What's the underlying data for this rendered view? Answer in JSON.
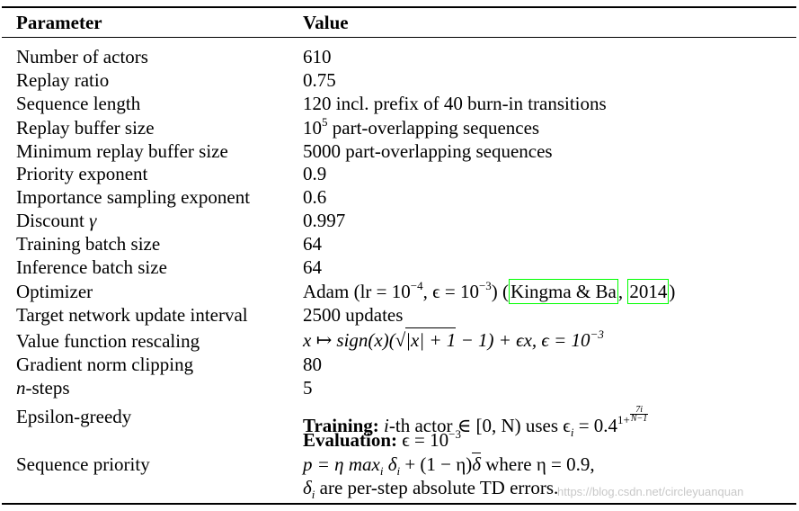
{
  "header": {
    "parameter": "Parameter",
    "value": "Value"
  },
  "rows": [
    {
      "param": "Number of actors",
      "value": "610"
    },
    {
      "param": "Replay ratio",
      "value": "0.75"
    },
    {
      "param": "Sequence length",
      "value": "120 incl. prefix of 40 burn-in transitions"
    },
    {
      "param": "Replay buffer size",
      "value_base": "10",
      "value_exp": "5",
      "value_rest": " part-overlapping sequences"
    },
    {
      "param": "Minimum replay buffer size",
      "value": "5000 part-overlapping sequences"
    },
    {
      "param": "Priority exponent",
      "value": "0.9"
    },
    {
      "param": "Importance sampling exponent",
      "value": "0.6"
    },
    {
      "param": "Discount",
      "param_symbol": "γ",
      "value": "0.997"
    },
    {
      "param": "Training batch size",
      "value": "64"
    },
    {
      "param": "Inference batch size",
      "value": "64"
    },
    {
      "param": "Optimizer",
      "value_a": "Adam (lr = 10",
      "value_a_exp": "−4",
      "value_b": ", ϵ = 10",
      "value_b_exp": "−3",
      "value_c": ")  (",
      "cite_author": "Kingma & Ba",
      "cite_sep": ", ",
      "cite_year": "2014",
      "value_d": ")"
    },
    {
      "param": "Target network update interval",
      "value": "2500 updates"
    },
    {
      "param": "Value function rescaling",
      "value_a": "x ↦ sign(x)(",
      "value_sqrt": "√",
      "value_sqrt_body": "|x| + 1",
      "value_b": " − 1) + ϵx, ϵ = 10",
      "value_exp": "−3"
    },
    {
      "param": "Gradient norm clipping",
      "value": "80"
    },
    {
      "param": "n",
      "param_rest": "-steps",
      "value": "5"
    },
    {
      "param": "Epsilon-greedy",
      "training_label": "Training:",
      "training_a": " i",
      "training_b": "-th actor ∈ [0, N) uses ϵ",
      "training_sub": "i",
      "training_c": " = 0.4",
      "training_exp_pre": "1+",
      "training_frac_num": "7i",
      "training_frac_den": "N−1",
      "eval_label": "Evaluation:",
      "eval_a": " ϵ = 10",
      "eval_exp": "−3"
    },
    {
      "param": "Sequence priority",
      "line1_a": "p = η max",
      "line1_sub": "i",
      "line1_b": " δ",
      "line1_sub2": "i",
      "line1_c": " + (1 − η)",
      "line1_bar": "δ",
      "line1_d": " where η = 0.9,",
      "line2_a": "δ",
      "line2_sub": "i",
      "line2_b": " are per-step absolute TD errors."
    }
  ],
  "watermark": "https://blog.csdn.net/circleyuanquan"
}
